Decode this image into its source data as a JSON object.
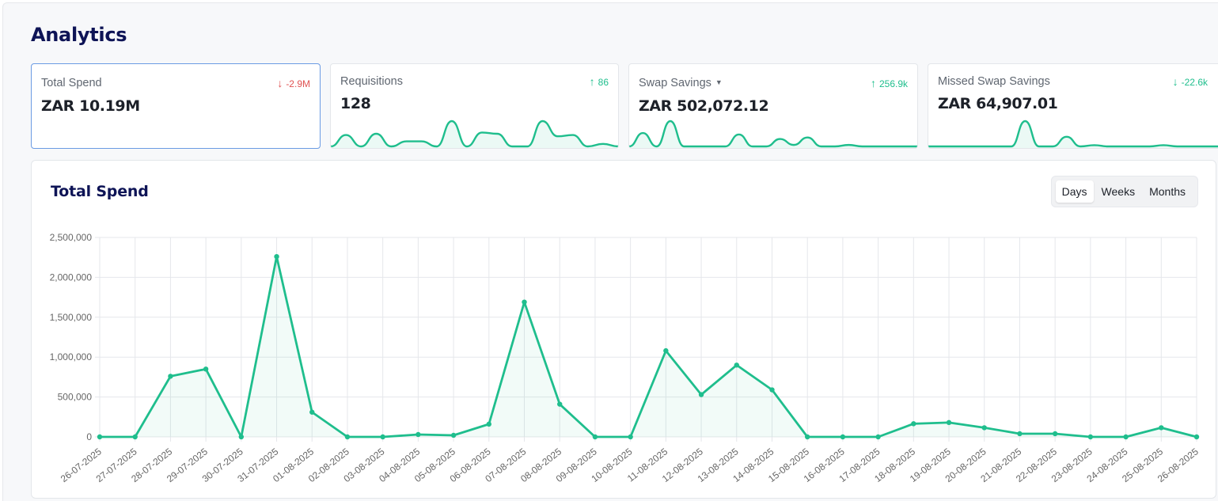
{
  "page": {
    "title": "Analytics"
  },
  "cards": [
    {
      "label": "Total Spend",
      "value": "ZAR 10.19M",
      "delta": "-2.9M",
      "direction": "down",
      "delta_color": "#e05252",
      "sparkline": []
    },
    {
      "label": "Requisitions",
      "value": "128",
      "delta": "86",
      "direction": "up",
      "delta_color": "#1fbe8d",
      "sparkline": [
        0,
        9,
        0,
        10,
        0,
        4,
        4,
        0,
        20,
        0,
        11,
        10,
        0,
        0,
        20,
        8,
        9,
        0,
        2,
        0
      ]
    },
    {
      "label": "Swap Savings",
      "has_dropdown": true,
      "value": "ZAR 502,072.12",
      "delta": "256.9k",
      "direction": "up",
      "delta_color": "#1fbe8d",
      "sparkline": [
        0,
        9,
        0,
        17,
        0,
        0,
        0,
        0,
        8,
        0,
        0,
        5,
        1,
        6,
        0,
        0,
        1,
        0,
        0,
        0,
        0,
        0
      ]
    },
    {
      "label": "Missed Swap Savings",
      "value": "ZAR 64,907.01",
      "delta": "-22.6k",
      "direction": "down",
      "delta_color": "#1fbe8d",
      "sparkline": [
        0,
        0,
        0,
        0,
        0,
        0,
        0,
        21,
        0,
        0,
        8,
        0,
        1,
        0,
        0,
        0,
        0,
        1,
        0,
        0,
        0,
        0
      ]
    }
  ],
  "panel": {
    "title": "Total Spend"
  },
  "toggle": {
    "options": [
      "Days",
      "Weeks",
      "Months"
    ],
    "selected": "Days"
  },
  "colors": {
    "accent": "#1fbe8d",
    "title": "#0e1456",
    "negative": "#e05252"
  },
  "chart_data": {
    "type": "area",
    "title": "Total Spend",
    "xlabel": "",
    "ylabel": "",
    "ylim": [
      0,
      2500000
    ],
    "yticks": [
      0,
      500000,
      1000000,
      1500000,
      2000000,
      2500000
    ],
    "ytick_labels": [
      "0",
      "500,000",
      "1,000,000",
      "1,500,000",
      "2,000,000",
      "2,500,000"
    ],
    "grid": true,
    "legend": "none",
    "categories": [
      "26-07-2025",
      "27-07-2025",
      "28-07-2025",
      "29-07-2025",
      "30-07-2025",
      "31-07-2025",
      "01-08-2025",
      "02-08-2025",
      "03-08-2025",
      "04-08-2025",
      "05-08-2025",
      "06-08-2025",
      "07-08-2025",
      "08-08-2025",
      "09-08-2025",
      "10-08-2025",
      "11-08-2025",
      "12-08-2025",
      "13-08-2025",
      "14-08-2025",
      "15-08-2025",
      "16-08-2025",
      "17-08-2025",
      "18-08-2025",
      "19-08-2025",
      "20-08-2025",
      "21-08-2025",
      "22-08-2025",
      "23-08-2025",
      "24-08-2025",
      "25-08-2025",
      "26-08-2025"
    ],
    "values": [
      0,
      0,
      760000,
      850000,
      0,
      2260000,
      310000,
      0,
      0,
      30000,
      20000,
      160000,
      1690000,
      410000,
      0,
      0,
      1080000,
      530000,
      900000,
      590000,
      0,
      0,
      0,
      165000,
      180000,
      115000,
      40000,
      40000,
      0,
      0,
      115000,
      0
    ]
  }
}
